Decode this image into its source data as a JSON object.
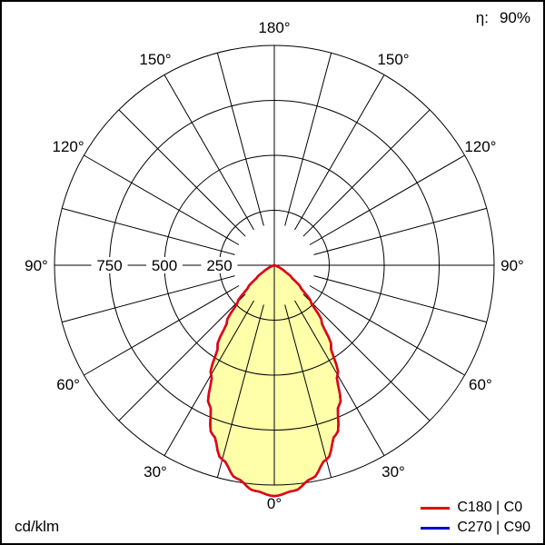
{
  "header": {
    "eta_label": "η:",
    "eta_value": "90%"
  },
  "footer": {
    "unit_label": "cd/klm"
  },
  "legend": {
    "items": [
      {
        "label": "C180 | C0",
        "color": "#e8000d"
      },
      {
        "label": "C270 | C90",
        "color": "#0000cd"
      }
    ]
  },
  "chart_data": {
    "type": "polar",
    "kind": "luminous-intensity-distribution",
    "unit": "cd/klm",
    "efficiency_percent": 90,
    "radial_ticks": [
      750,
      500,
      250
    ],
    "ring_values": [
      250,
      500,
      750,
      1000
    ],
    "radial_max": 1000,
    "spoke_step_deg": 15,
    "angle_labels": [
      "0°",
      "30°",
      "60°",
      "90°",
      "120°",
      "150°",
      "180°"
    ],
    "grid_color": "#000000",
    "series": [
      {
        "name": "C180 | C0",
        "color": "#e8000d",
        "fill": "#ffffaa",
        "gamma_deg": [
          0,
          5,
          10,
          15,
          20,
          25,
          30,
          35,
          40,
          45,
          50,
          55,
          60,
          65,
          70,
          75,
          80,
          85,
          90
        ],
        "values": [
          1050,
          1030,
          985,
          915,
          820,
          700,
          575,
          450,
          335,
          235,
          155,
          95,
          55,
          28,
          12,
          5,
          1,
          0,
          0
        ]
      },
      {
        "name": "C270 | C90",
        "color": "#0000cd",
        "fill": null,
        "gamma_deg": [
          0,
          5,
          10,
          15,
          20,
          25,
          30,
          35,
          40,
          45,
          50,
          55,
          60,
          65,
          70,
          75,
          80,
          85,
          90
        ],
        "values": [
          1050,
          1030,
          985,
          915,
          820,
          700,
          575,
          450,
          335,
          235,
          155,
          95,
          55,
          28,
          12,
          5,
          1,
          0,
          0
        ]
      }
    ]
  }
}
